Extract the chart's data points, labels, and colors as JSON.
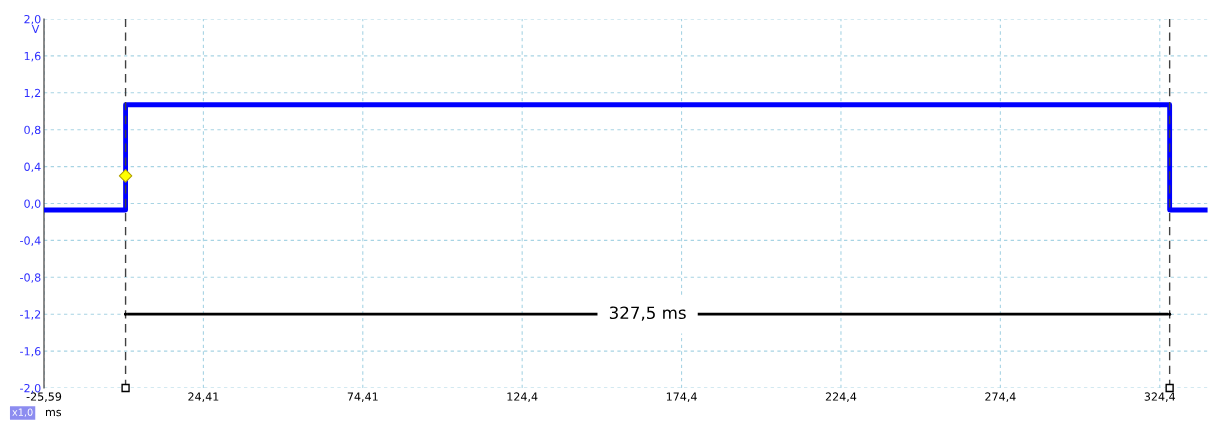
{
  "chart_data": {
    "type": "line",
    "xlabel": "ms",
    "ylabel": "V",
    "series": [
      {
        "color": "#0000ff",
        "x": [
          -25.59,
          0,
          0,
          327.5,
          327.5,
          339.4
        ],
        "values": [
          -0.07,
          -0.07,
          1.07,
          1.07,
          -0.07,
          -0.07
        ]
      },
      {
        "type": "line",
        "color": "#000000",
        "x": [
          0.9,
          326.6
        ],
        "values": [
          -1.2,
          -1.2
        ]
      },
      {
        "type": "scatter",
        "color": "#ffff00",
        "marker": "diamond",
        "x": [
          0
        ],
        "values": [
          0.3
        ]
      }
    ],
    "xlim": [
      -25.59,
      339.4
    ],
    "ylim": [
      -2.0,
      2.0
    ],
    "xticks": [
      {
        "value": -25.59,
        "label": "-25,59"
      },
      {
        "value": 24.41,
        "label": "24,41"
      },
      {
        "value": 74.41,
        "label": "74,41"
      },
      {
        "value": 124.4,
        "label": "124,4"
      },
      {
        "value": 174.4,
        "label": "174,4"
      },
      {
        "value": 224.4,
        "label": "224,4"
      },
      {
        "value": 274.4,
        "label": "274,4"
      },
      {
        "value": 324.4,
        "label": "324,4"
      }
    ],
    "yticks": [
      {
        "value": 2.0,
        "label": "2,0"
      },
      {
        "value": 1.6,
        "label": "1,6"
      },
      {
        "value": 1.2,
        "label": "1,2"
      },
      {
        "value": 0.8,
        "label": "0,8"
      },
      {
        "value": 0.4,
        "label": "0,4"
      },
      {
        "value": 0.0,
        "label": "0,0"
      },
      {
        "value": -0.4,
        "label": "-0,4"
      },
      {
        "value": -0.8,
        "label": "-0,8"
      },
      {
        "value": -1.2,
        "label": "-1,2"
      },
      {
        "value": -1.6,
        "label": "-1,6"
      },
      {
        "value": -2.0,
        "label": "-2,0"
      }
    ],
    "ref_lines": [
      {
        "axis": "x",
        "value": 0,
        "color": "#404040",
        "line_style": "dashed"
      },
      {
        "axis": "x",
        "value": 327.5,
        "color": "#404040",
        "line_style": "dashed"
      }
    ],
    "annotations": [
      "327,5 ms",
      "x1,0"
    ],
    "grid": true,
    "line_style": "solid"
  }
}
